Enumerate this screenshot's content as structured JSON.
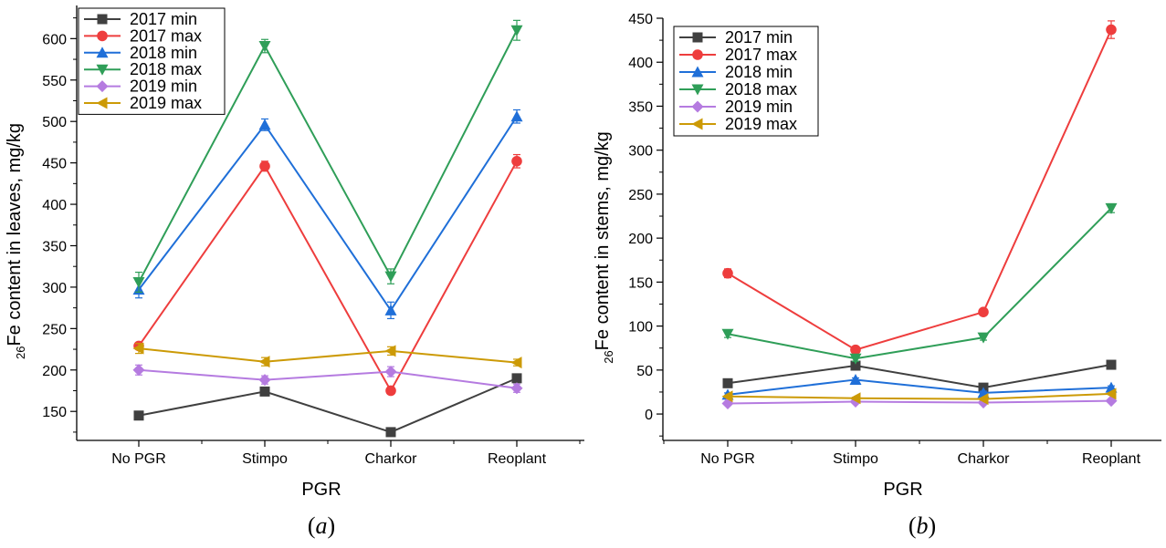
{
  "chart_data": [
    {
      "type": "line",
      "panel_label": "(a)",
      "xlabel": "PGR",
      "ylabel": {
        "sub": "26",
        "main": "Fe content in leaves, mg/kg"
      },
      "categories": [
        "No PGR",
        "Stimpo",
        "Charkor",
        "Reoplant"
      ],
      "ylim": [
        115,
        640
      ],
      "yticks": [
        150,
        200,
        250,
        300,
        350,
        400,
        450,
        500,
        550,
        600
      ],
      "legend_position": "top-left",
      "series": [
        {
          "name": "2017 min",
          "color": "#404040",
          "marker": "square",
          "values": [
            145,
            174,
            125,
            190
          ],
          "errors": [
            4,
            4,
            3,
            4
          ]
        },
        {
          "name": "2017 max",
          "color": "#ee3d3d",
          "marker": "circle",
          "values": [
            229,
            446,
            175,
            452
          ],
          "errors": [
            4,
            6,
            4,
            8
          ]
        },
        {
          "name": "2018 min",
          "color": "#1f6fd8",
          "marker": "triangle-up",
          "values": [
            297,
            496,
            272,
            506
          ],
          "errors": [
            10,
            7,
            10,
            8
          ]
        },
        {
          "name": "2018 max",
          "color": "#2f9e58",
          "marker": "triangle-down",
          "values": [
            306,
            591,
            313,
            610
          ],
          "errors": [
            12,
            8,
            9,
            12
          ]
        },
        {
          "name": "2019 min",
          "color": "#b57be0",
          "marker": "diamond",
          "values": [
            200,
            188,
            198,
            178
          ],
          "errors": [
            6,
            5,
            6,
            5
          ]
        },
        {
          "name": "2019 max",
          "color": "#cc9a06",
          "marker": "triangle-left",
          "values": [
            226,
            210,
            223,
            209
          ],
          "errors": [
            6,
            5,
            5,
            4
          ]
        }
      ]
    },
    {
      "type": "line",
      "panel_label": "(b)",
      "xlabel": "PGR",
      "ylabel": {
        "sub": "26",
        "main": "Fe content in stems, mg/kg"
      },
      "categories": [
        "No PGR",
        "Stimpo",
        "Charkor",
        "Reoplant"
      ],
      "ylim": [
        -30,
        450
      ],
      "yticks": [
        0,
        50,
        100,
        150,
        200,
        250,
        300,
        350,
        400,
        450
      ],
      "legend_position": "top-left",
      "series": [
        {
          "name": "2017 min",
          "color": "#404040",
          "marker": "square",
          "values": [
            35,
            55,
            30,
            56
          ],
          "errors": [
            2,
            2,
            2,
            2
          ]
        },
        {
          "name": "2017 max",
          "color": "#ee3d3d",
          "marker": "circle",
          "values": [
            160,
            73,
            116,
            437
          ],
          "errors": [
            5,
            3,
            3,
            10
          ]
        },
        {
          "name": "2018 min",
          "color": "#1f6fd8",
          "marker": "triangle-up",
          "values": [
            22,
            39,
            24,
            30
          ],
          "errors": [
            2,
            2,
            2,
            2
          ]
        },
        {
          "name": "2018 max",
          "color": "#2f9e58",
          "marker": "triangle-down",
          "values": [
            91,
            63,
            87,
            234
          ],
          "errors": [
            4,
            3,
            3,
            5
          ]
        },
        {
          "name": "2019 min",
          "color": "#b57be0",
          "marker": "diamond",
          "values": [
            12,
            14,
            13,
            15
          ],
          "errors": [
            1,
            1,
            1,
            1
          ]
        },
        {
          "name": "2019 max",
          "color": "#cc9a06",
          "marker": "triangle-left",
          "values": [
            20,
            18,
            17,
            23
          ],
          "errors": [
            1,
            1,
            1,
            1
          ]
        }
      ]
    }
  ]
}
